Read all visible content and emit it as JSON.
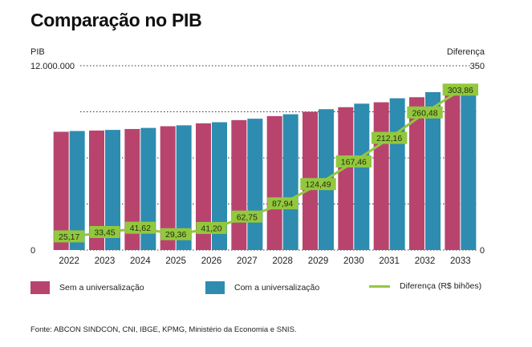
{
  "title": "Comparação no PIB",
  "source": "Fonte: ABCON SINDCON, CNI, IBGE, KPMG, Ministério da Economia e SNIS.",
  "colors": {
    "sem": "#B8446E",
    "com": "#2D8CB0",
    "diff": "#93C83E"
  },
  "chart_data": {
    "type": "bar",
    "categories": [
      "2022",
      "2023",
      "2024",
      "2025",
      "2026",
      "2027",
      "2028",
      "2029",
      "2030",
      "2031",
      "2032",
      "2033"
    ],
    "series": [
      {
        "name": "Sem a universalização",
        "values": [
          7700000,
          7780000,
          7880000,
          8060000,
          8250000,
          8460000,
          8720000,
          9000000,
          9300000,
          9620000,
          9950000,
          10300000
        ]
      },
      {
        "name": "Com a universalização",
        "values": [
          7750000,
          7820000,
          7950000,
          8120000,
          8320000,
          8550000,
          8840000,
          9170000,
          9530000,
          9880000,
          10280000,
          10630000
        ]
      },
      {
        "name": "Diferença (R$ bihões)",
        "type": "line",
        "axis": "right",
        "values": [
          25.17,
          33.45,
          41.62,
          29.36,
          41.2,
          62.75,
          87.94,
          124.49,
          167.46,
          212.16,
          260.48,
          303.86
        ],
        "labels": [
          "25,17",
          "33,45",
          "41,62",
          "29,36",
          "41,20",
          "62,75",
          "87,94",
          "124,49",
          "167,46",
          "212,16",
          "260,48",
          "303,86"
        ]
      }
    ],
    "ylabel": "PIB",
    "y2label": "Diferença",
    "ylim": [
      0,
      12000000
    ],
    "y2lim": [
      0,
      350
    ],
    "yticks": [
      "0",
      "12.000.000"
    ],
    "y2ticks": [
      "0",
      "350"
    ],
    "grid": true,
    "legend_position": "bottom"
  }
}
